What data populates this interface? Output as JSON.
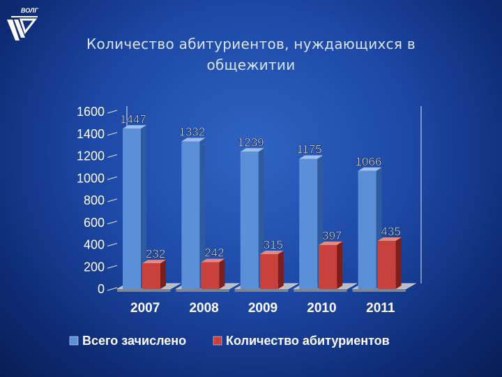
{
  "title": "Количество абитуриентов, нуждающихся в общежитии",
  "logo_text": "ВОЛГ",
  "colors": {
    "series1": "#5b8fd8",
    "series1_side": "#2e5aa0",
    "series1_top": "#9fc0ee",
    "series2": "#c8413c",
    "series2_side": "#7c1f1c",
    "series2_top": "#e38a84",
    "floor": "#b8bec8",
    "floor_side": "#7d848f"
  },
  "chart_data": {
    "type": "bar",
    "categories": [
      "2007",
      "2008",
      "2009",
      "2010",
      "2011"
    ],
    "series": [
      {
        "name": "Всего зачислено",
        "values": [
          1447,
          1332,
          1239,
          1175,
          1066
        ]
      },
      {
        "name": "Количество абитуриентов",
        "values": [
          232,
          242,
          315,
          397,
          435
        ]
      }
    ],
    "y_ticks": [
      "0",
      "200",
      "400",
      "600",
      "800",
      "1000",
      "1200",
      "1400",
      "1600"
    ],
    "ylim": [
      0,
      1600
    ],
    "grid": false,
    "legend_position": "bottom",
    "three_d": true
  }
}
